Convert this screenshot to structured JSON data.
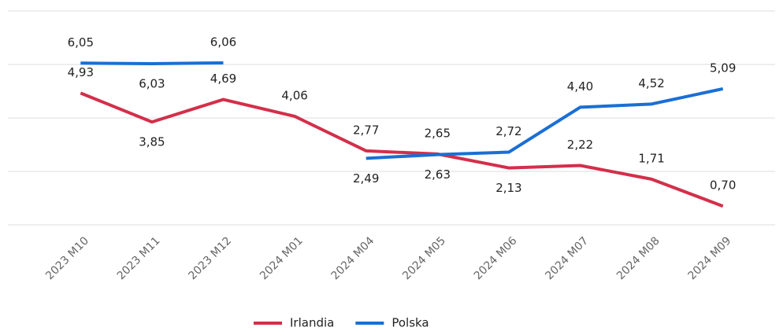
{
  "chart_data": {
    "type": "line",
    "categories": [
      "2023 M10",
      "2023 M11",
      "2023 M12",
      "2024 M01",
      "2024 M04",
      "2024 M05",
      "2024 M06",
      "2024 M07",
      "2024 M08",
      "2024 M09"
    ],
    "series": [
      {
        "name": "Irlandia",
        "color": "#d32f4a",
        "values": [
          4.93,
          3.85,
          4.69,
          4.06,
          2.77,
          2.65,
          2.13,
          2.22,
          1.71,
          0.7
        ],
        "value_labels": [
          "4,93",
          "3,85",
          "4,69",
          "4,06",
          "2,77",
          "2,65",
          "2,13",
          "2,22",
          "1,71",
          "0,70"
        ]
      },
      {
        "name": "Polska",
        "color": "#1a6fd4",
        "values": [
          6.05,
          6.03,
          6.06,
          null,
          2.49,
          2.63,
          2.72,
          4.4,
          4.52,
          5.09
        ],
        "value_labels": [
          "6,05",
          "6,03",
          "6,06",
          null,
          "2,49",
          "2,63",
          "2,72",
          "4,40",
          "4,52",
          "5,09"
        ]
      }
    ],
    "ylim": [
      0,
      8
    ],
    "yticks": [
      0,
      2,
      4,
      6,
      8
    ],
    "grid": true,
    "legend": "bottom"
  }
}
